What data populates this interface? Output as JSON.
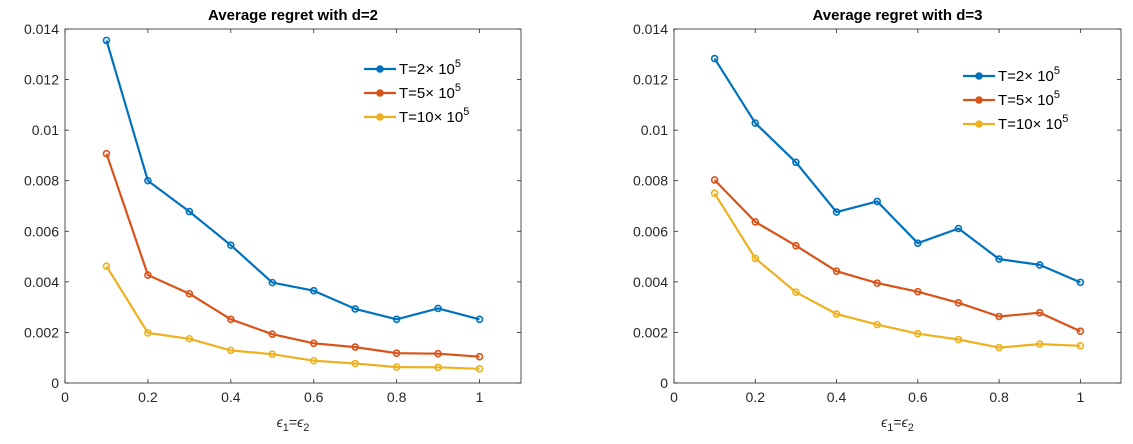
{
  "chart_data": [
    {
      "type": "line",
      "title": "Average regret with d=2",
      "xlabel": {
        "base": "ϵ",
        "sub1": "1",
        "eq": "=",
        "base2": "ϵ",
        "sub2": "2"
      },
      "ylabel": "",
      "xlim": [
        0,
        1.1
      ],
      "ylim": [
        0,
        0.014
      ],
      "xticks": [
        0,
        0.2,
        0.4,
        0.6,
        0.8,
        1
      ],
      "xtick_labels": [
        "0",
        "0.2",
        "0.4",
        "0.6",
        "0.8",
        "1"
      ],
      "yticks": [
        0,
        0.002,
        0.004,
        0.006,
        0.008,
        0.01,
        0.012,
        0.014
      ],
      "ytick_labels": [
        "0",
        "0.002",
        "0.004",
        "0.006",
        "0.008",
        "0.01",
        "0.012",
        "0.014"
      ],
      "grid": false,
      "legend_position": "top-right",
      "x": [
        0.1,
        0.2,
        0.3,
        0.4,
        0.5,
        0.6,
        0.7,
        0.8,
        0.9,
        1.0
      ],
      "series": [
        {
          "name": "T=2× 10^5",
          "label_main": "T=2×",
          "label_base": "10",
          "label_exp": "5",
          "color": "#0072BD",
          "values": [
            0.01355,
            0.008,
            0.00678,
            0.00545,
            0.00397,
            0.00365,
            0.00293,
            0.00252,
            0.00295,
            0.00252
          ]
        },
        {
          "name": "T=5× 10^5",
          "label_main": "T=5×",
          "label_base": "10",
          "label_exp": "5",
          "color": "#D95319",
          "values": [
            0.00907,
            0.00427,
            0.00353,
            0.00252,
            0.00193,
            0.00157,
            0.00142,
            0.00118,
            0.00116,
            0.00104
          ]
        },
        {
          "name": "T=10× 10^5",
          "label_main": "T=10×",
          "label_base": "10",
          "label_exp": "5",
          "color": "#EDB120",
          "values": [
            0.00462,
            0.00198,
            0.00175,
            0.00129,
            0.00114,
            0.00088,
            0.00077,
            0.00063,
            0.00062,
            0.00056
          ]
        }
      ]
    },
    {
      "type": "line",
      "title": "Average regret with d=3",
      "xlabel": {
        "base": "ϵ",
        "sub1": "1",
        "eq": "=",
        "base2": "ϵ",
        "sub2": "2"
      },
      "ylabel": "",
      "xlim": [
        0,
        1.1
      ],
      "ylim": [
        0,
        0.014
      ],
      "xticks": [
        0,
        0.2,
        0.4,
        0.6,
        0.8,
        1
      ],
      "xtick_labels": [
        "0",
        "0.2",
        "0.4",
        "0.6",
        "0.8",
        "1"
      ],
      "yticks": [
        0,
        0.002,
        0.004,
        0.006,
        0.008,
        0.01,
        0.012,
        0.014
      ],
      "ytick_labels": [
        "0",
        "0.002",
        "0.004",
        "0.006",
        "0.008",
        "0.01",
        "0.012",
        "0.014"
      ],
      "grid": false,
      "legend_position": "top-right",
      "x": [
        0.1,
        0.2,
        0.3,
        0.4,
        0.5,
        0.6,
        0.7,
        0.8,
        0.9,
        1.0
      ],
      "series": [
        {
          "name": "T=2× 10^5",
          "label_main": "T=2×",
          "label_base": "10",
          "label_exp": "5",
          "color": "#0072BD",
          "values": [
            0.01283,
            0.01028,
            0.00873,
            0.00676,
            0.00718,
            0.00553,
            0.00611,
            0.0049,
            0.00467,
            0.00398
          ]
        },
        {
          "name": "T=5× 10^5",
          "label_main": "T=5×",
          "label_base": "10",
          "label_exp": "5",
          "color": "#D95319",
          "values": [
            0.00803,
            0.00637,
            0.00543,
            0.00442,
            0.00395,
            0.00361,
            0.00317,
            0.00263,
            0.00278,
            0.00205
          ]
        },
        {
          "name": "T=10× 10^5",
          "label_main": "T=10×",
          "label_base": "10",
          "label_exp": "5",
          "color": "#EDB120",
          "values": [
            0.0075,
            0.00493,
            0.00359,
            0.00273,
            0.00231,
            0.00195,
            0.00172,
            0.0014,
            0.00154,
            0.00147
          ]
        }
      ]
    }
  ]
}
